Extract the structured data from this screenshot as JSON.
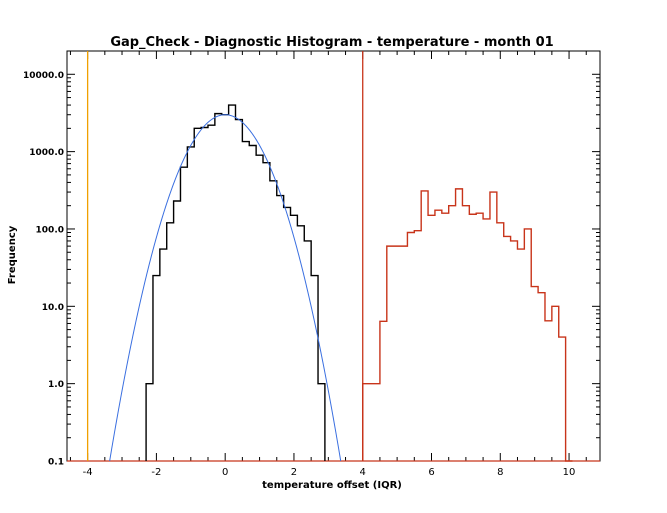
{
  "chart_data": {
    "type": "histogram",
    "title": "Gap_Check - Diagnostic Histogram - temperature - month 01",
    "xlabel": "temperature offset (IQR)",
    "ylabel": "Frequency",
    "xlim": [
      -4.6,
      10.9
    ],
    "ylim": [
      0.1,
      20000
    ],
    "y_scale": "log",
    "x_ticks": [
      -4,
      -2,
      0,
      2,
      4,
      6,
      8,
      10
    ],
    "x_tick_labels": [
      "-4",
      "-2",
      "0",
      "2",
      "4",
      "6",
      "8",
      "10"
    ],
    "y_ticks": [
      0.1,
      1,
      10,
      100,
      1000,
      10000
    ],
    "y_tick_labels": [
      "0.1",
      "1.0",
      "10.0",
      "100.0",
      "1000.0",
      "10000.0"
    ],
    "series": [
      {
        "color": "#000000",
        "style": "step",
        "bins": [
          {
            "x0": -2.3,
            "x1": -2.1,
            "y": 1
          },
          {
            "x0": -2.1,
            "x1": -1.9,
            "y": 25
          },
          {
            "x0": -1.9,
            "x1": -1.7,
            "y": 55
          },
          {
            "x0": -1.7,
            "x1": -1.5,
            "y": 120
          },
          {
            "x0": -1.5,
            "x1": -1.3,
            "y": 230
          },
          {
            "x0": -1.3,
            "x1": -1.1,
            "y": 630
          },
          {
            "x0": -1.1,
            "x1": -0.9,
            "y": 1150
          },
          {
            "x0": -0.9,
            "x1": -0.7,
            "y": 2000
          },
          {
            "x0": -0.7,
            "x1": -0.5,
            "y": 2050
          },
          {
            "x0": -0.5,
            "x1": -0.3,
            "y": 2200
          },
          {
            "x0": -0.3,
            "x1": -0.1,
            "y": 3100
          },
          {
            "x0": -0.1,
            "x1": 0.1,
            "y": 3000
          },
          {
            "x0": 0.1,
            "x1": 0.3,
            "y": 4000
          },
          {
            "x0": 0.3,
            "x1": 0.5,
            "y": 2600
          },
          {
            "x0": 0.5,
            "x1": 0.7,
            "y": 1350
          },
          {
            "x0": 0.7,
            "x1": 0.9,
            "y": 1200
          },
          {
            "x0": 0.9,
            "x1": 1.1,
            "y": 900
          },
          {
            "x0": 1.1,
            "x1": 1.3,
            "y": 720
          },
          {
            "x0": 1.3,
            "x1": 1.5,
            "y": 420
          },
          {
            "x0": 1.5,
            "x1": 1.7,
            "y": 270
          },
          {
            "x0": 1.7,
            "x1": 1.9,
            "y": 190
          },
          {
            "x0": 1.9,
            "x1": 2.1,
            "y": 150
          },
          {
            "x0": 2.1,
            "x1": 2.3,
            "y": 110
          },
          {
            "x0": 2.3,
            "x1": 2.5,
            "y": 70
          },
          {
            "x0": 2.5,
            "x1": 2.7,
            "y": 25
          },
          {
            "x0": 2.7,
            "x1": 2.9,
            "y": 1
          }
        ]
      },
      {
        "color": "#c8341a",
        "style": "step",
        "bins": [
          {
            "x0": 4.0,
            "x1": 4.5,
            "y": 1
          },
          {
            "x0": 4.5,
            "x1": 4.7,
            "y": 6.4
          },
          {
            "x0": 4.7,
            "x1": 5.1,
            "y": 60
          },
          {
            "x0": 5.1,
            "x1": 5.3,
            "y": 60
          },
          {
            "x0": 5.3,
            "x1": 5.5,
            "y": 90
          },
          {
            "x0": 5.5,
            "x1": 5.7,
            "y": 95
          },
          {
            "x0": 5.7,
            "x1": 5.9,
            "y": 310
          },
          {
            "x0": 5.9,
            "x1": 6.1,
            "y": 150
          },
          {
            "x0": 6.1,
            "x1": 6.3,
            "y": 175
          },
          {
            "x0": 6.3,
            "x1": 6.5,
            "y": 160
          },
          {
            "x0": 6.5,
            "x1": 6.7,
            "y": 200
          },
          {
            "x0": 6.7,
            "x1": 6.9,
            "y": 330
          },
          {
            "x0": 6.9,
            "x1": 7.1,
            "y": 200
          },
          {
            "x0": 7.1,
            "x1": 7.3,
            "y": 155
          },
          {
            "x0": 7.3,
            "x1": 7.5,
            "y": 160
          },
          {
            "x0": 7.5,
            "x1": 7.7,
            "y": 135
          },
          {
            "x0": 7.7,
            "x1": 7.9,
            "y": 300
          },
          {
            "x0": 7.9,
            "x1": 8.1,
            "y": 120
          },
          {
            "x0": 8.1,
            "x1": 8.3,
            "y": 80
          },
          {
            "x0": 8.3,
            "x1": 8.5,
            "y": 70
          },
          {
            "x0": 8.5,
            "x1": 8.7,
            "y": 55
          },
          {
            "x0": 8.7,
            "x1": 8.9,
            "y": 100
          },
          {
            "x0": 8.9,
            "x1": 9.1,
            "y": 18
          },
          {
            "x0": 9.1,
            "x1": 9.3,
            "y": 15
          },
          {
            "x0": 9.3,
            "x1": 9.5,
            "y": 6.5
          },
          {
            "x0": 9.5,
            "x1": 9.7,
            "y": 10
          },
          {
            "x0": 9.7,
            "x1": 9.9,
            "y": 4
          },
          {
            "x0": 9.9,
            "x1": 10.1,
            "y": 0.1
          }
        ]
      }
    ],
    "fit_curve": {
      "color": "#3a6fe0",
      "amplitude": 3000,
      "mean": 0.0,
      "sigma": 0.74
    },
    "vertical_lines": [
      {
        "x": -4,
        "color": "#f0a000"
      },
      {
        "x": 4,
        "color": "#c8341a"
      }
    ],
    "baseline_color": "#c8341a",
    "grid": false
  }
}
